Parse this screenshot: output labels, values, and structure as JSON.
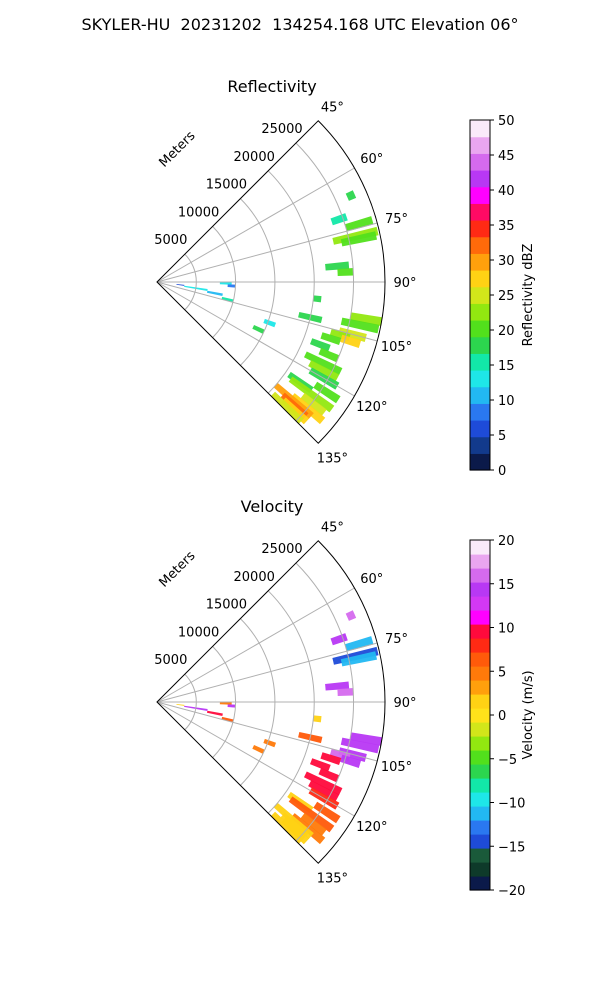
{
  "suptitle": "SKYLER-HU  20231202  134254.168 UTC Elevation 06°",
  "chart_data": [
    {
      "type": "heatmap",
      "title": "Reflectivity",
      "projection": "polar sector",
      "radial_axis_label": "Meters",
      "radial_ticks": [
        "5000",
        "10000",
        "15000",
        "20000",
        "25000"
      ],
      "azimuth_ticks": [
        "45°",
        "60°",
        "75°",
        "90°",
        "105°",
        "120°",
        "135°"
      ],
      "azimuth_range_deg": [
        45,
        135
      ],
      "range_max_m": 29000,
      "grid": true,
      "colorbar": {
        "label": "Reflectivity dBZ",
        "min": 0,
        "max": 50,
        "ticks": [
          "0",
          "5",
          "10",
          "15",
          "20",
          "25",
          "30",
          "35",
          "40",
          "45",
          "50"
        ],
        "colors": [
          "#0b1a4a",
          "#123a8c",
          "#1e4bd8",
          "#2a78f0",
          "#22b8f2",
          "#1ee7e8",
          "#12e8a8",
          "#2cd64e",
          "#52e01c",
          "#92e810",
          "#d2e61a",
          "#ffd214",
          "#ffa00c",
          "#ff6a0a",
          "#ff2a14",
          "#ff0a64",
          "#ff00ff",
          "#b838f4",
          "#d56aee",
          "#eaa6f0",
          "#faeafa"
        ]
      },
      "echoes": [
        {
          "az": 66,
          "r": [
            26500,
            27500
          ],
          "value": 18
        },
        {
          "az": 71,
          "r": [
            23500,
            25500
          ],
          "value": 16
        },
        {
          "az": 74,
          "r": [
            25000,
            28500
          ],
          "value": 21
        },
        {
          "az": 77,
          "r": [
            23000,
            28800
          ],
          "value": 23
        },
        {
          "az": 78,
          "r": [
            24000,
            28500
          ],
          "value": 20
        },
        {
          "az": 85,
          "r": [
            21500,
            24500
          ],
          "value": 18
        },
        {
          "az": 87,
          "r": [
            23000,
            25000
          ],
          "value": 20
        },
        {
          "az": 91,
          "r": [
            8000,
            9500
          ],
          "value": 12
        },
        {
          "az": 93,
          "r": [
            9000,
            10000
          ],
          "value": 8
        },
        {
          "az": 96,
          "r": [
            20000,
            21000
          ],
          "value": 17
        },
        {
          "az": 97,
          "r": [
            2500,
            3500
          ],
          "value": 6
        },
        {
          "az": 99,
          "r": [
            3500,
            6500
          ],
          "value": 14
        },
        {
          "az": 100,
          "r": [
            25000,
            29000
          ],
          "value": 22
        },
        {
          "az": 101,
          "r": [
            6500,
            8500
          ],
          "value": 10
        },
        {
          "az": 102,
          "r": [
            24000,
            28800
          ],
          "value": 21
        },
        {
          "az": 103,
          "r": [
            18500,
            21500
          ],
          "value": 18
        },
        {
          "az": 104,
          "r": [
            8500,
            10000
          ],
          "value": 16
        },
        {
          "az": 105,
          "r": [
            24000,
            27500
          ],
          "value": 26
        },
        {
          "az": 106,
          "r": [
            23000,
            25500
          ],
          "value": 22
        },
        {
          "az": 107,
          "r": [
            24500,
            27000
          ],
          "value": 27
        },
        {
          "az": 108,
          "r": [
            22000,
            24500
          ],
          "value": 20
        },
        {
          "az": 110,
          "r": [
            14500,
            16000
          ],
          "value": 14
        },
        {
          "az": 111,
          "r": [
            21000,
            23500
          ],
          "value": 19
        },
        {
          "az": 113,
          "r": [
            22500,
            25000
          ],
          "value": 21
        },
        {
          "az": 115,
          "r": [
            13500,
            15000
          ],
          "value": 18
        },
        {
          "az": 116,
          "r": [
            21000,
            26000
          ],
          "value": 20
        },
        {
          "az": 118,
          "r": [
            22000,
            26000
          ],
          "value": 23
        },
        {
          "az": 120,
          "r": [
            22500,
            26500
          ],
          "value": 19
        },
        {
          "az": 123,
          "r": [
            24000,
            27500
          ],
          "value": 21
        },
        {
          "az": 125,
          "r": [
            20500,
            24000
          ],
          "value": 19
        },
        {
          "az": 126,
          "r": [
            21000,
            27500
          ],
          "value": 22
        },
        {
          "az": 128,
          "r": [
            23500,
            27000
          ],
          "value": 24
        },
        {
          "az": 130,
          "r": [
            22500,
            27500
          ],
          "value": 27
        },
        {
          "az": 131,
          "r": [
            20000,
            26000
          ],
          "value": 29
        },
        {
          "az": 132,
          "r": [
            21500,
            25500
          ],
          "value": 31
        },
        {
          "az": 133,
          "r": [
            22000,
            26000
          ],
          "value": 28
        },
        {
          "az": 134,
          "r": [
            20500,
            25500
          ],
          "value": 25
        }
      ]
    },
    {
      "type": "heatmap",
      "title": "Velocity",
      "projection": "polar sector",
      "radial_axis_label": "Meters",
      "radial_ticks": [
        "5000",
        "10000",
        "15000",
        "20000",
        "25000"
      ],
      "azimuth_ticks": [
        "45°",
        "60°",
        "75°",
        "90°",
        "105°",
        "120°",
        "135°"
      ],
      "azimuth_range_deg": [
        45,
        135
      ],
      "range_max_m": 29000,
      "grid": true,
      "colorbar": {
        "label": "Velocity (m/s)",
        "min": -20,
        "max": 20,
        "ticks": [
          "−20",
          "−15",
          "−10",
          "−5",
          "0",
          "5",
          "10",
          "15",
          "20"
        ],
        "colors": [
          "#0b1a4a",
          "#0e3a2a",
          "#1a5a3a",
          "#1e4bd8",
          "#2a78f0",
          "#22b8f2",
          "#1ee7e8",
          "#12e8a8",
          "#2cd64e",
          "#52e01c",
          "#92e810",
          "#d2e61a",
          "#ffe21a",
          "#ffd214",
          "#ffa00c",
          "#ff7a0a",
          "#ff5a0a",
          "#ff2a14",
          "#ff0a3c",
          "#ff00ff",
          "#d338f4",
          "#b838f4",
          "#d56aee",
          "#eaa6f0",
          "#faeafa"
        ]
      },
      "echoes": [
        {
          "az": 66,
          "r": [
            26500,
            27500
          ],
          "value": 16
        },
        {
          "az": 71,
          "r": [
            23500,
            25500
          ],
          "value": 15
        },
        {
          "az": 74,
          "r": [
            25000,
            28500
          ],
          "value": -12
        },
        {
          "az": 77,
          "r": [
            23000,
            28800
          ],
          "value": -14
        },
        {
          "az": 78,
          "r": [
            24000,
            28500
          ],
          "value": -11
        },
        {
          "az": 85,
          "r": [
            21500,
            24500
          ],
          "value": 15
        },
        {
          "az": 87,
          "r": [
            23000,
            25000
          ],
          "value": 16
        },
        {
          "az": 91,
          "r": [
            8000,
            9500
          ],
          "value": 5
        },
        {
          "az": 93,
          "r": [
            9000,
            10000
          ],
          "value": 14
        },
        {
          "az": 96,
          "r": [
            20000,
            21000
          ],
          "value": 2
        },
        {
          "az": 97,
          "r": [
            2500,
            3500
          ],
          "value": 1
        },
        {
          "az": 99,
          "r": [
            3500,
            6500
          ],
          "value": 15
        },
        {
          "az": 100,
          "r": [
            25000,
            29000
          ],
          "value": 15
        },
        {
          "az": 101,
          "r": [
            6500,
            8500
          ],
          "value": 9
        },
        {
          "az": 102,
          "r": [
            24000,
            28800
          ],
          "value": 14
        },
        {
          "az": 103,
          "r": [
            18500,
            21500
          ],
          "value": 7
        },
        {
          "az": 104,
          "r": [
            8500,
            10000
          ],
          "value": 6
        },
        {
          "az": 105,
          "r": [
            24000,
            27500
          ],
          "value": 15
        },
        {
          "az": 106,
          "r": [
            23000,
            25500
          ],
          "value": 16
        },
        {
          "az": 107,
          "r": [
            24500,
            27000
          ],
          "value": 14
        },
        {
          "az": 108,
          "r": [
            22000,
            24500
          ],
          "value": 10
        },
        {
          "az": 110,
          "r": [
            14500,
            16000
          ],
          "value": 5
        },
        {
          "az": 111,
          "r": [
            21000,
            23500
          ],
          "value": 10
        },
        {
          "az": 113,
          "r": [
            22500,
            25000
          ],
          "value": 9
        },
        {
          "az": 115,
          "r": [
            13500,
            15000
          ],
          "value": 5
        },
        {
          "az": 116,
          "r": [
            21000,
            26000
          ],
          "value": 10
        },
        {
          "az": 118,
          "r": [
            22000,
            26000
          ],
          "value": 9
        },
        {
          "az": 120,
          "r": [
            22500,
            26500
          ],
          "value": 8
        },
        {
          "az": 123,
          "r": [
            24000,
            27500
          ],
          "value": 7
        },
        {
          "az": 125,
          "r": [
            20500,
            24000
          ],
          "value": 1
        },
        {
          "az": 126,
          "r": [
            21000,
            27500
          ],
          "value": 6
        },
        {
          "az": 128,
          "r": [
            23500,
            27000
          ],
          "value": 5
        },
        {
          "az": 130,
          "r": [
            22500,
            27500
          ],
          "value": 4
        },
        {
          "az": 131,
          "r": [
            20000,
            26000
          ],
          "value": 2
        },
        {
          "az": 132,
          "r": [
            21500,
            25500
          ],
          "value": 1
        },
        {
          "az": 133,
          "r": [
            22000,
            26000
          ],
          "value": 2
        },
        {
          "az": 134,
          "r": [
            20500,
            25500
          ],
          "value": 1
        }
      ]
    }
  ]
}
